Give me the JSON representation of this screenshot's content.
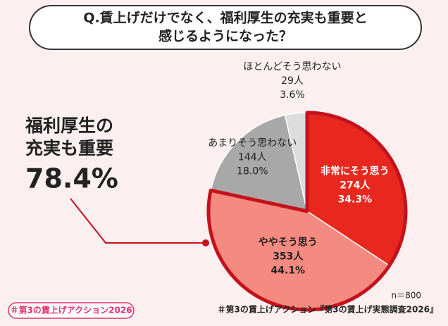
{
  "chart_data": {
    "type": "pie",
    "title_lines": [
      "Q.賃上げだけでなく、福利厚生の充実も重要と",
      "感じるようになった？"
    ],
    "categories": [
      "非常にそう思う",
      "ややそう思う",
      "あまりそう思わない",
      "ほとんどそう思わない"
    ],
    "values": [
      34.3,
      44.1,
      18.0,
      3.6
    ],
    "value_labels": [
      "34.3%",
      "44.1%",
      "18.0%",
      "3.6%"
    ],
    "counts": [
      274,
      353,
      144,
      29
    ],
    "count_labels": [
      "274人",
      "353人",
      "144人",
      "29人"
    ],
    "colors": [
      "#e8281e",
      "#f58a80",
      "#a8a8a8",
      "#dcdcdc"
    ],
    "outlined": [
      true,
      true,
      false,
      false
    ],
    "outline_color": "#c4121c",
    "highlight": {
      "lines": [
        "福利厚生の",
        "充実も重要"
      ],
      "value": 78.4,
      "value_label": "78.4%"
    },
    "sample_note": "n＝800",
    "source": "＃第3の賃上げアクション『第3の賃上げ実態調査2026』",
    "badge": "＃第3の賃上げアクション2026"
  }
}
